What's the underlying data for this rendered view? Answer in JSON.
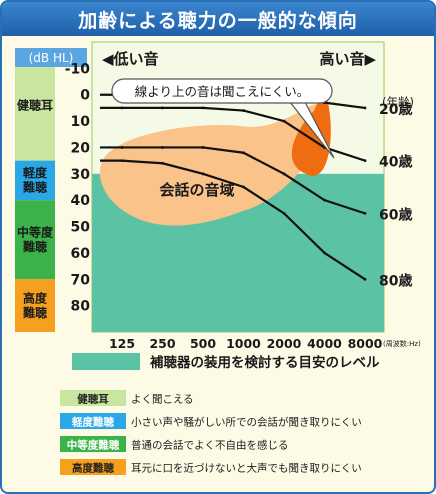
{
  "title": "加齢による聴力の一般的な傾向",
  "chart_data": {
    "type": "line",
    "unit_label": "(dB HL)",
    "low_label": "◀低い音",
    "high_label": "高い音▶",
    "x_categories": [
      "125",
      "250",
      "500",
      "1000",
      "2000",
      "4000",
      "8000"
    ],
    "x_unit": "(周波数:Hz)",
    "y_ticks": [
      "-10",
      "0",
      "10",
      "20",
      "30",
      "40",
      "50",
      "60",
      "70",
      "80"
    ],
    "ylim": [
      -20,
      90
    ],
    "callout": "線より上の音は聞こえにくい。",
    "age_header": "(年齢)",
    "series": [
      {
        "name": "20歳",
        "values": [
          0,
          0,
          0,
          0,
          0,
          3,
          5
        ]
      },
      {
        "name": "40歳",
        "values": [
          5,
          5,
          5,
          6,
          10,
          20,
          25
        ]
      },
      {
        "name": "60歳",
        "values": [
          20,
          20,
          20,
          22,
          30,
          40,
          45
        ]
      },
      {
        "name": "80歳",
        "values": [
          25,
          26,
          30,
          35,
          45,
          60,
          70
        ]
      }
    ],
    "speech_label": "会話の音域",
    "hearing_aid_label": "補聴器の装用を検討する目安のレベル",
    "bands": [
      {
        "name": "健聴耳",
        "from": -20,
        "to": 25,
        "color": "#c8e6a0"
      },
      {
        "name": "軽度難聴",
        "from": 25,
        "to": 40,
        "color": "#2aa8e6"
      },
      {
        "name": "中等度難聴",
        "from": 40,
        "to": 70,
        "color": "#3cb34a"
      },
      {
        "name": "高度難聴",
        "from": 70,
        "to": 90,
        "color": "#f5a01e"
      }
    ],
    "legend": [
      {
        "label": "健聴耳",
        "desc": "よく聞こえる",
        "color": "#c8e6a0",
        "text_color": "#222222"
      },
      {
        "label": "軽度難聴",
        "desc": "小さい声や騒がしい所での会話が聞き取りにくい",
        "color": "#2aa8e6",
        "text_color": "#ffffff"
      },
      {
        "label": "中等度難聴",
        "desc": "普通の会話でよく不自由を感じる",
        "color": "#3cb34a",
        "text_color": "#ffffff"
      },
      {
        "label": "高度難聴",
        "desc": "耳元に口を近づけないと大声でも聞き取りにくい",
        "color": "#f5a01e",
        "text_color": "#222222"
      }
    ],
    "colors": {
      "plot_bg": "#f4fae6",
      "plot_border": "#9ccb5a",
      "hearing_aid": "#5cc2a4",
      "speech": "#f9c38a",
      "high_blob": "#ef6d10",
      "line": "#111111",
      "title_bg": "#2a6fb6"
    }
  }
}
